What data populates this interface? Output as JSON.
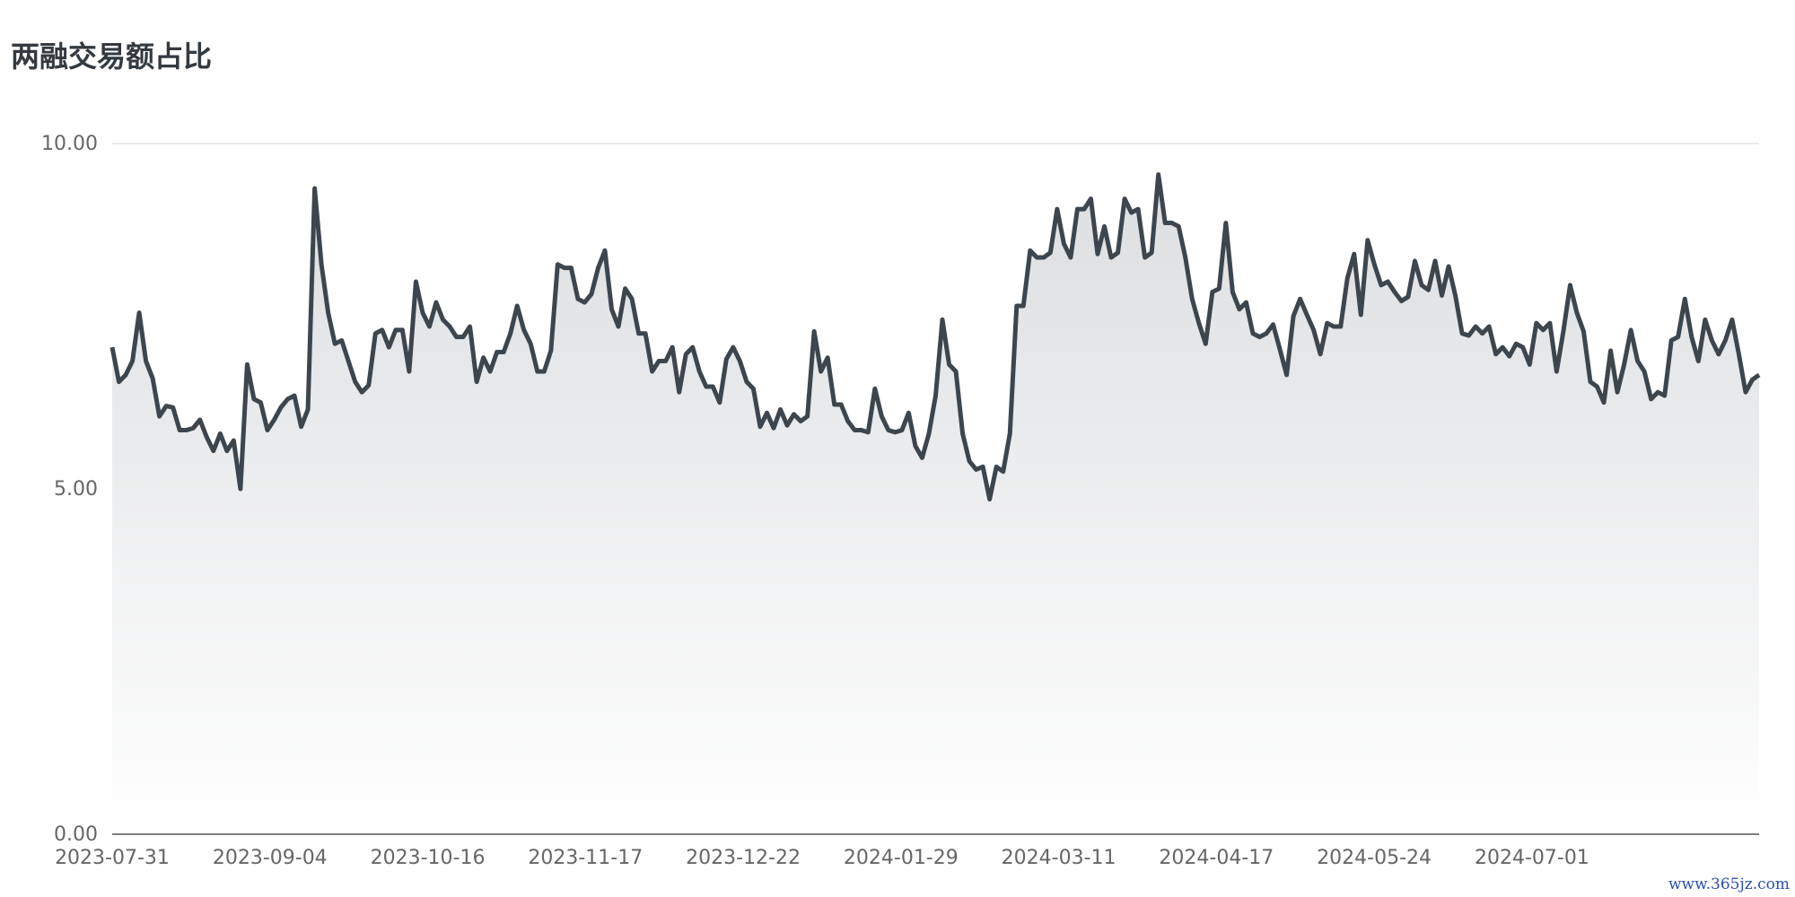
{
  "chart_data": {
    "type": "area",
    "title": "两融交易额占比",
    "xlabel": "",
    "ylabel": "",
    "ylim": [
      0,
      10
    ],
    "y_ticks": [
      "0.00",
      "5.00",
      "10.00"
    ],
    "x_ticks": [
      "2023-07-31",
      "2023-09-04",
      "2023-10-16",
      "2023-11-17",
      "2023-12-22",
      "2024-01-29",
      "2024-03-11",
      "2024-04-17",
      "2024-05-24",
      "2024-07-01"
    ],
    "grid": true,
    "legend": "none",
    "series": [
      {
        "values": [
          7.05,
          6.55,
          6.65,
          6.85,
          7.55,
          6.85,
          6.6,
          6.05,
          6.2,
          6.18,
          5.85,
          5.85,
          5.88,
          6.0,
          5.75,
          5.55,
          5.8,
          5.55,
          5.7,
          5.0,
          6.8,
          6.3,
          6.25,
          5.85,
          6.0,
          6.18,
          6.3,
          6.35,
          5.9,
          6.15,
          9.35,
          8.25,
          7.55,
          7.1,
          7.15,
          6.85,
          6.55,
          6.4,
          6.5,
          7.25,
          7.3,
          7.05,
          7.3,
          7.3,
          6.7,
          8.0,
          7.55,
          7.35,
          7.7,
          7.45,
          7.35,
          7.2,
          7.2,
          7.35,
          6.55,
          6.9,
          6.7,
          6.98,
          6.98,
          7.25,
          7.65,
          7.3,
          7.1,
          6.7,
          6.7,
          7.0,
          8.25,
          8.2,
          8.2,
          7.75,
          7.7,
          7.82,
          8.2,
          8.45,
          7.6,
          7.35,
          7.9,
          7.75,
          7.25,
          7.25,
          6.7,
          6.85,
          6.85,
          7.05,
          6.4,
          6.95,
          7.05,
          6.7,
          6.48,
          6.48,
          6.25,
          6.88,
          7.05,
          6.85,
          6.55,
          6.45,
          5.9,
          6.1,
          5.88,
          6.15,
          5.92,
          6.08,
          5.98,
          6.05,
          7.28,
          6.7,
          6.9,
          6.22,
          6.22,
          5.98,
          5.85,
          5.85,
          5.82,
          6.45,
          6.05,
          5.85,
          5.82,
          5.85,
          6.1,
          5.62,
          5.45,
          5.8,
          6.35,
          7.45,
          6.8,
          6.7,
          5.8,
          5.4,
          5.28,
          5.32,
          4.85,
          5.32,
          5.25,
          5.8,
          7.65,
          7.65,
          8.45,
          8.35,
          8.35,
          8.42,
          9.05,
          8.55,
          8.35,
          9.05,
          9.05,
          9.2,
          8.4,
          8.8,
          8.35,
          8.42,
          9.2,
          9.0,
          9.05,
          8.35,
          8.42,
          9.55,
          8.85,
          8.85,
          8.8,
          8.35,
          7.75,
          7.4,
          7.1,
          7.85,
          7.9,
          8.85,
          7.85,
          7.6,
          7.7,
          7.25,
          7.2,
          7.25,
          7.38,
          7.02,
          6.65,
          7.5,
          7.75,
          7.52,
          7.3,
          6.95,
          7.4,
          7.35,
          7.35,
          8.05,
          8.4,
          7.52,
          8.6,
          8.25,
          7.95,
          8.0,
          7.85,
          7.72,
          7.78,
          8.3,
          7.95,
          7.88,
          8.3,
          7.8,
          8.22,
          7.8,
          7.25,
          7.22,
          7.35,
          7.25,
          7.35,
          6.95,
          7.05,
          6.92,
          7.1,
          7.05,
          6.8,
          7.4,
          7.3,
          7.4,
          6.7,
          7.28,
          7.95,
          7.55,
          7.28,
          6.55,
          6.48,
          6.25,
          7.0,
          6.4,
          6.8,
          7.3,
          6.85,
          6.7,
          6.3,
          6.4,
          6.35,
          7.15,
          7.2,
          7.75,
          7.2,
          6.85,
          7.45,
          7.15,
          6.95,
          7.15,
          7.45,
          6.95,
          6.4,
          6.58,
          6.65
        ]
      }
    ],
    "colors": {
      "line": "#3d454d",
      "fill_top": "#dcdee0",
      "fill_bottom": "#ffffff",
      "grid": "#d9dde2",
      "axis": "#555555",
      "tick_text": "#666666"
    }
  },
  "watermark": "www.365jz.com"
}
